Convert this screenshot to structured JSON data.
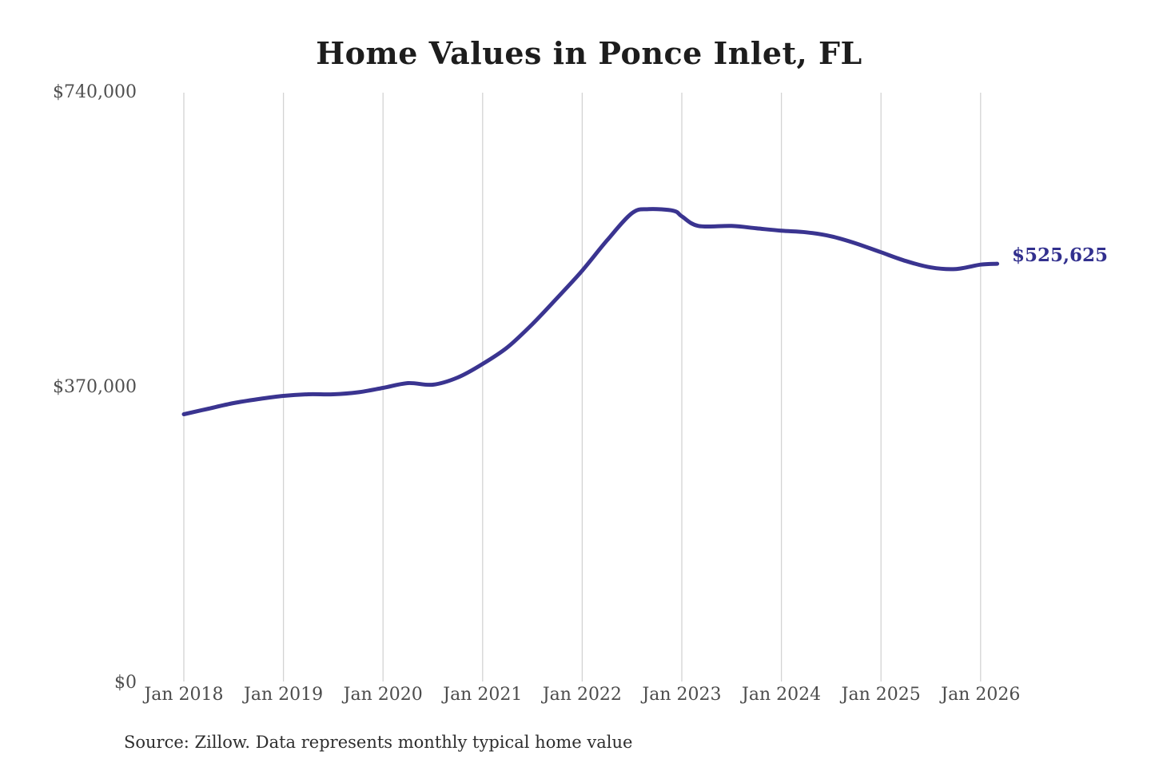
{
  "title": "Home Values in Ponce Inlet, FL",
  "source_note": "Source: Zillow. Data represents monthly typical home value",
  "colors": {
    "background": "#ffffff",
    "line": "#3a3490",
    "end_label": "#32308e",
    "gridline": "#d3d3d3",
    "title_text": "#1d1d1d",
    "axis_text": "#4f4f4f",
    "source_text": "#2e2e2e"
  },
  "chart_data": {
    "type": "line",
    "title": "Home Values in Ponce Inlet, FL",
    "xlabel": "",
    "ylabel": "",
    "ylim": [
      0,
      740000
    ],
    "grid": "vertical-only",
    "legend": "none",
    "y_tick_labels": [
      "$740,000",
      "$370,000",
      "$0"
    ],
    "y_tick_values": [
      740000,
      370000,
      0
    ],
    "x_tick_labels": [
      "Jan 2018",
      "Jan 2019",
      "Jan 2020",
      "Jan 2021",
      "Jan 2022",
      "Jan 2023",
      "Jan 2024",
      "Jan 2025",
      "Jan 2026"
    ],
    "final_value_label": "$525,625",
    "final_value": 525625,
    "point_format": [
      "months_since_jan_2018",
      "usd_typical_home_value"
    ],
    "series": [
      {
        "name": "Typical home value",
        "points": [
          [
            0,
            337000
          ],
          [
            3,
            344000
          ],
          [
            6,
            351000
          ],
          [
            9,
            356000
          ],
          [
            12,
            360000
          ],
          [
            15,
            362000
          ],
          [
            18,
            362000
          ],
          [
            21,
            364500
          ],
          [
            24,
            370000
          ],
          [
            27,
            376000
          ],
          [
            30,
            374000
          ],
          [
            33,
            383000
          ],
          [
            36,
            400000
          ],
          [
            39,
            421000
          ],
          [
            42,
            450000
          ],
          [
            45,
            483000
          ],
          [
            48,
            517000
          ],
          [
            51,
            555000
          ],
          [
            54,
            589000
          ],
          [
            56,
            594000
          ],
          [
            59,
            592000
          ],
          [
            60,
            585000
          ],
          [
            62,
            573000
          ],
          [
            66,
            573000
          ],
          [
            69,
            570000
          ],
          [
            72,
            567000
          ],
          [
            75,
            565000
          ],
          [
            78,
            560000
          ],
          [
            81,
            551000
          ],
          [
            84,
            540000
          ],
          [
            87,
            529000
          ],
          [
            90,
            521000
          ],
          [
            93,
            519000
          ],
          [
            96,
            524500
          ],
          [
            98,
            525625
          ]
        ]
      }
    ]
  }
}
